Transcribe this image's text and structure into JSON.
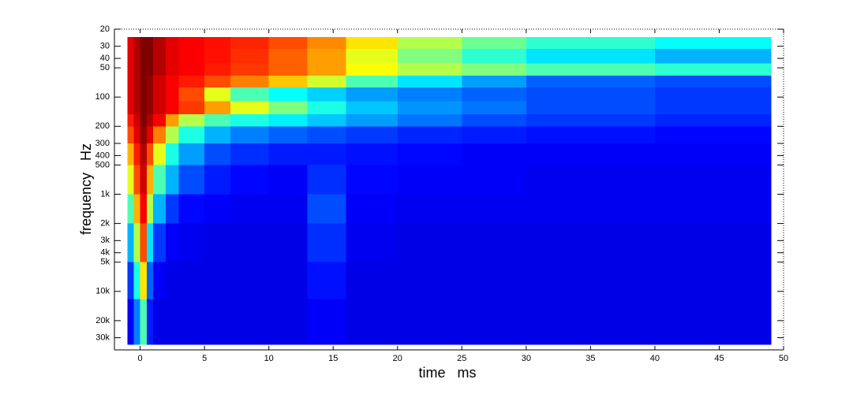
{
  "chart_data": {
    "type": "heatmap",
    "xlabel": "time   ms",
    "ylabel": "frequency   Hz",
    "colormap": "jet",
    "xlim": [
      -2,
      50
    ],
    "xticks": [
      0,
      5,
      10,
      15,
      20,
      25,
      30,
      35,
      40,
      45,
      50
    ],
    "ylim": [
      20,
      40000
    ],
    "y_log": true,
    "y_reversed": true,
    "yticks": [
      20,
      30,
      40,
      50,
      100,
      200,
      300,
      400,
      500,
      {
        "value": 1000,
        "label": "1k"
      },
      {
        "value": 2000,
        "label": "2k"
      },
      {
        "value": 3000,
        "label": "3k"
      },
      {
        "value": 4000,
        "label": "4k"
      },
      {
        "value": 5000,
        "label": "5k"
      },
      {
        "value": 10000,
        "label": "10k"
      },
      {
        "value": 20000,
        "label": "20k"
      },
      {
        "value": 30000,
        "label": "30k"
      }
    ],
    "xbins": [
      -1,
      -0.5,
      0,
      0.5,
      1,
      2,
      3,
      5,
      7,
      10,
      13,
      16,
      20,
      25,
      30,
      40,
      49
    ],
    "ybins": [
      24,
      32,
      45,
      60,
      80,
      110,
      150,
      200,
      300,
      500,
      1000,
      2000,
      5000,
      12000,
      35000
    ],
    "z": [
      [
        0.9,
        0.95,
        1,
        1,
        0.95,
        0.9,
        0.88,
        0.86,
        0.84,
        0.8,
        0.74,
        0.65,
        0.55,
        0.48,
        0.42,
        0.38
      ],
      [
        0.9,
        0.95,
        1,
        1,
        0.95,
        0.9,
        0.88,
        0.86,
        0.83,
        0.78,
        0.72,
        0.6,
        0.5,
        0.42,
        0.35,
        0.3
      ],
      [
        0.9,
        0.95,
        1,
        1,
        0.95,
        0.9,
        0.88,
        0.85,
        0.82,
        0.78,
        0.72,
        0.62,
        0.55,
        0.5,
        0.45,
        0.42
      ],
      [
        0.9,
        0.95,
        1,
        0.98,
        0.92,
        0.88,
        0.85,
        0.8,
        0.75,
        0.68,
        0.58,
        0.45,
        0.35,
        0.28,
        0.22,
        0.2
      ],
      [
        0.9,
        0.95,
        1,
        0.98,
        0.92,
        0.88,
        0.8,
        0.6,
        0.45,
        0.38,
        0.33,
        0.28,
        0.25,
        0.22,
        0.2,
        0.18
      ],
      [
        0.9,
        0.95,
        1,
        0.98,
        0.92,
        0.88,
        0.82,
        0.72,
        0.6,
        0.5,
        0.4,
        0.32,
        0.27,
        0.24,
        0.2,
        0.18
      ],
      [
        0.85,
        0.92,
        1,
        0.95,
        0.88,
        0.72,
        0.55,
        0.45,
        0.4,
        0.36,
        0.32,
        0.28,
        0.24,
        0.2,
        0.18,
        0.16
      ],
      [
        0.8,
        0.9,
        0.98,
        0.9,
        0.75,
        0.55,
        0.4,
        0.3,
        0.25,
        0.22,
        0.2,
        0.18,
        0.16,
        0.15,
        0.14,
        0.13
      ],
      [
        0.7,
        0.85,
        0.95,
        0.8,
        0.6,
        0.4,
        0.28,
        0.2,
        0.17,
        0.15,
        0.15,
        0.14,
        0.13,
        0.12,
        0.12,
        0.12
      ],
      [
        0.6,
        0.8,
        0.92,
        0.7,
        0.45,
        0.3,
        0.2,
        0.15,
        0.13,
        0.12,
        0.17,
        0.13,
        0.12,
        0.12,
        0.11,
        0.11
      ],
      [
        0.45,
        0.7,
        0.88,
        0.55,
        0.3,
        0.18,
        0.13,
        0.12,
        0.11,
        0.11,
        0.2,
        0.12,
        0.11,
        0.11,
        0.11,
        0.11
      ],
      [
        0.3,
        0.55,
        0.8,
        0.35,
        0.18,
        0.12,
        0.11,
        0.1,
        0.1,
        0.1,
        0.17,
        0.11,
        0.1,
        0.1,
        0.1,
        0.1
      ],
      [
        0.18,
        0.4,
        0.65,
        0.22,
        0.12,
        0.1,
        0.1,
        0.1,
        0.1,
        0.1,
        0.14,
        0.1,
        0.1,
        0.1,
        0.1,
        0.1
      ],
      [
        0.12,
        0.25,
        0.45,
        0.15,
        0.1,
        0.1,
        0.1,
        0.1,
        0.1,
        0.1,
        0.12,
        0.1,
        0.1,
        0.1,
        0.1,
        0.1
      ]
    ]
  }
}
